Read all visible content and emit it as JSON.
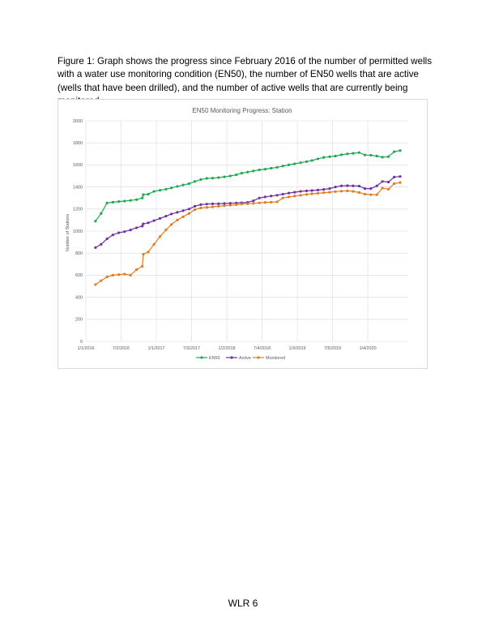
{
  "document": {
    "caption": "Figure 1: Graph shows the progress since February 2016 of the number of permitted wells with a water use monitoring condition (EN50), the number of EN50 wells that are active (wells that have been drilled), and the number of active wells that are currently being monitored.",
    "footer": "WLR 6"
  },
  "colors": {
    "en50": "#1fa84f",
    "active": "#7030a0",
    "monitored": "#e07b1f",
    "grid": "#d9d9d9",
    "axis_text": "#595959"
  },
  "chart_data": {
    "type": "line",
    "title": "EN50 Monitoring Progress: Station",
    "xlabel": "",
    "ylabel": "Number of Stations",
    "x_ticks": [
      "1/1/2016",
      "7/2/2016",
      "1/1/2017",
      "7/3/2017",
      "1/2/2018",
      "7/4/2018",
      "1/3/2019",
      "7/5/2019",
      "1/4/2020"
    ],
    "y_ticks": [
      "0",
      "200",
      "400",
      "600",
      "800",
      "1000",
      "1200",
      "1400",
      "1600",
      "1800",
      "2000"
    ],
    "ylim": [
      0,
      2000
    ],
    "xlim": [
      "2016-01-01",
      "2020-08-01"
    ],
    "grid": "horizontal",
    "legend_position": "bottom",
    "series": [
      {
        "name": "EN50",
        "points": [
          [
            "2016-02-20",
            1090
          ],
          [
            "2016-03-20",
            1160
          ],
          [
            "2016-04-20",
            1255
          ],
          [
            "2016-05-20",
            1262
          ],
          [
            "2016-06-20",
            1268
          ],
          [
            "2016-07-20",
            1272
          ],
          [
            "2016-08-20",
            1278
          ],
          [
            "2016-09-20",
            1285
          ],
          [
            "2016-10-20",
            1300
          ],
          [
            "2016-10-25",
            1330
          ],
          [
            "2016-11-20",
            1335
          ],
          [
            "2016-12-20",
            1360
          ],
          [
            "2017-01-20",
            1370
          ],
          [
            "2017-02-20",
            1380
          ],
          [
            "2017-03-20",
            1392
          ],
          [
            "2017-04-20",
            1405
          ],
          [
            "2017-05-20",
            1418
          ],
          [
            "2017-06-20",
            1430
          ],
          [
            "2017-07-20",
            1450
          ],
          [
            "2017-08-20",
            1468
          ],
          [
            "2017-09-20",
            1478
          ],
          [
            "2017-10-20",
            1480
          ],
          [
            "2017-11-20",
            1485
          ],
          [
            "2017-12-20",
            1492
          ],
          [
            "2018-01-20",
            1500
          ],
          [
            "2018-02-20",
            1510
          ],
          [
            "2018-03-20",
            1525
          ],
          [
            "2018-04-20",
            1535
          ],
          [
            "2018-05-20",
            1545
          ],
          [
            "2018-06-20",
            1555
          ],
          [
            "2018-07-20",
            1562
          ],
          [
            "2018-08-20",
            1570
          ],
          [
            "2018-09-20",
            1578
          ],
          [
            "2018-10-20",
            1590
          ],
          [
            "2018-11-20",
            1600
          ],
          [
            "2018-12-20",
            1610
          ],
          [
            "2019-01-20",
            1620
          ],
          [
            "2019-02-20",
            1630
          ],
          [
            "2019-03-20",
            1640
          ],
          [
            "2019-04-20",
            1655
          ],
          [
            "2019-05-20",
            1668
          ],
          [
            "2019-06-20",
            1675
          ],
          [
            "2019-07-20",
            1680
          ],
          [
            "2019-08-20",
            1692
          ],
          [
            "2019-09-20",
            1700
          ],
          [
            "2019-10-20",
            1705
          ],
          [
            "2019-11-20",
            1712
          ],
          [
            "2019-12-20",
            1690
          ],
          [
            "2020-01-20",
            1688
          ],
          [
            "2020-02-20",
            1680
          ],
          [
            "2020-03-20",
            1670
          ],
          [
            "2020-04-20",
            1675
          ],
          [
            "2020-05-20",
            1720
          ],
          [
            "2020-06-20",
            1730
          ]
        ]
      },
      {
        "name": "Active",
        "points": [
          [
            "2016-02-20",
            850
          ],
          [
            "2016-03-20",
            880
          ],
          [
            "2016-04-20",
            930
          ],
          [
            "2016-05-20",
            965
          ],
          [
            "2016-06-20",
            985
          ],
          [
            "2016-07-20",
            995
          ],
          [
            "2016-08-20",
            1010
          ],
          [
            "2016-09-20",
            1030
          ],
          [
            "2016-10-20",
            1045
          ],
          [
            "2016-10-25",
            1065
          ],
          [
            "2016-11-20",
            1075
          ],
          [
            "2016-12-20",
            1095
          ],
          [
            "2017-01-20",
            1115
          ],
          [
            "2017-02-20",
            1135
          ],
          [
            "2017-03-20",
            1155
          ],
          [
            "2017-04-20",
            1170
          ],
          [
            "2017-05-20",
            1185
          ],
          [
            "2017-06-20",
            1200
          ],
          [
            "2017-07-20",
            1225
          ],
          [
            "2017-08-20",
            1240
          ],
          [
            "2017-09-20",
            1245
          ],
          [
            "2017-10-20",
            1247
          ],
          [
            "2017-11-20",
            1248
          ],
          [
            "2017-12-20",
            1250
          ],
          [
            "2018-01-20",
            1252
          ],
          [
            "2018-02-20",
            1255
          ],
          [
            "2018-03-20",
            1257
          ],
          [
            "2018-04-20",
            1260
          ],
          [
            "2018-05-20",
            1275
          ],
          [
            "2018-06-20",
            1300
          ],
          [
            "2018-07-20",
            1310
          ],
          [
            "2018-08-20",
            1318
          ],
          [
            "2018-09-20",
            1325
          ],
          [
            "2018-10-20",
            1335
          ],
          [
            "2018-11-20",
            1345
          ],
          [
            "2018-12-20",
            1352
          ],
          [
            "2019-01-20",
            1360
          ],
          [
            "2019-02-20",
            1365
          ],
          [
            "2019-03-20",
            1368
          ],
          [
            "2019-04-20",
            1372
          ],
          [
            "2019-05-20",
            1378
          ],
          [
            "2019-06-20",
            1385
          ],
          [
            "2019-07-20",
            1400
          ],
          [
            "2019-08-20",
            1410
          ],
          [
            "2019-09-20",
            1412
          ],
          [
            "2019-10-20",
            1410
          ],
          [
            "2019-11-20",
            1408
          ],
          [
            "2019-12-20",
            1385
          ],
          [
            "2020-01-20",
            1385
          ],
          [
            "2020-02-20",
            1410
          ],
          [
            "2020-03-20",
            1450
          ],
          [
            "2020-04-20",
            1445
          ],
          [
            "2020-05-20",
            1490
          ],
          [
            "2020-06-20",
            1495
          ]
        ]
      },
      {
        "name": "Monitored",
        "points": [
          [
            "2016-02-20",
            515
          ],
          [
            "2016-03-20",
            550
          ],
          [
            "2016-04-20",
            585
          ],
          [
            "2016-05-20",
            600
          ],
          [
            "2016-06-20",
            605
          ],
          [
            "2016-07-20",
            610
          ],
          [
            "2016-08-20",
            600
          ],
          [
            "2016-09-20",
            650
          ],
          [
            "2016-10-20",
            680
          ],
          [
            "2016-10-25",
            790
          ],
          [
            "2016-11-20",
            810
          ],
          [
            "2016-12-20",
            880
          ],
          [
            "2017-01-20",
            950
          ],
          [
            "2017-02-20",
            1010
          ],
          [
            "2017-03-20",
            1060
          ],
          [
            "2017-04-20",
            1100
          ],
          [
            "2017-05-20",
            1130
          ],
          [
            "2017-06-20",
            1160
          ],
          [
            "2017-07-20",
            1195
          ],
          [
            "2017-08-20",
            1210
          ],
          [
            "2017-09-20",
            1215
          ],
          [
            "2017-10-20",
            1220
          ],
          [
            "2017-11-20",
            1225
          ],
          [
            "2017-12-20",
            1230
          ],
          [
            "2018-01-20",
            1235
          ],
          [
            "2018-02-20",
            1240
          ],
          [
            "2018-03-20",
            1245
          ],
          [
            "2018-04-20",
            1248
          ],
          [
            "2018-05-20",
            1252
          ],
          [
            "2018-06-20",
            1256
          ],
          [
            "2018-07-20",
            1260
          ],
          [
            "2018-08-20",
            1262
          ],
          [
            "2018-09-20",
            1265
          ],
          [
            "2018-10-20",
            1300
          ],
          [
            "2018-11-20",
            1310
          ],
          [
            "2018-12-20",
            1318
          ],
          [
            "2019-01-20",
            1325
          ],
          [
            "2019-02-20",
            1332
          ],
          [
            "2019-03-20",
            1338
          ],
          [
            "2019-04-20",
            1343
          ],
          [
            "2019-05-20",
            1348
          ],
          [
            "2019-06-20",
            1352
          ],
          [
            "2019-07-20",
            1358
          ],
          [
            "2019-08-20",
            1362
          ],
          [
            "2019-09-20",
            1365
          ],
          [
            "2019-10-20",
            1360
          ],
          [
            "2019-11-20",
            1350
          ],
          [
            "2019-12-20",
            1335
          ],
          [
            "2020-01-20",
            1330
          ],
          [
            "2020-02-20",
            1330
          ],
          [
            "2020-03-20",
            1390
          ],
          [
            "2020-04-20",
            1380
          ],
          [
            "2020-05-20",
            1430
          ],
          [
            "2020-06-20",
            1440
          ]
        ]
      }
    ]
  }
}
